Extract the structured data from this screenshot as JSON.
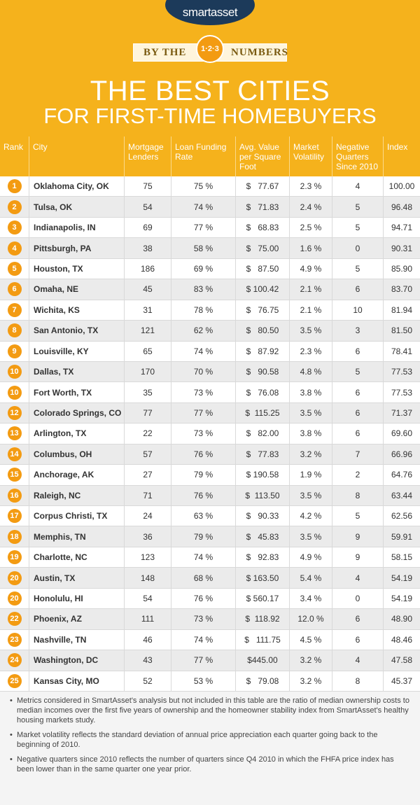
{
  "header": {
    "logo": "smartasset",
    "ribbon": [
      "BY THE",
      "1·2·3",
      "NUMBERS"
    ],
    "title": "THE BEST CITIES",
    "subtitle": "FOR FIRST-TIME HOMEBUYERS"
  },
  "table": {
    "header": [
      "Rank",
      "City",
      "Mortgage Lenders",
      "Loan Funding Rate",
      "Avg. Value per Square Foot",
      "Market Volatility",
      "Negative Quarters Since 2010",
      "Index"
    ],
    "rows": [
      [
        "1",
        "Oklahoma City, OK",
        "75",
        "75 %",
        "$   77.67",
        "2.3 %",
        "4",
        "100.00"
      ],
      [
        "2",
        "Tulsa, OK",
        "54",
        "74 %",
        "$   71.83",
        "2.4 %",
        "5",
        "96.48"
      ],
      [
        "3",
        "Indianapolis, IN",
        "69",
        "77 %",
        "$   68.83",
        "2.5 %",
        "5",
        "94.71"
      ],
      [
        "4",
        "Pittsburgh, PA",
        "38",
        "58 %",
        "$   75.00",
        "1.6 %",
        "0",
        "90.31"
      ],
      [
        "5",
        "Houston, TX",
        "186",
        "69 %",
        "$   87.50",
        "4.9 %",
        "5",
        "85.90"
      ],
      [
        "6",
        "Omaha, NE",
        "45",
        "83 %",
        "$ 100.42",
        "2.1 %",
        "6",
        "83.70"
      ],
      [
        "7",
        "Wichita, KS",
        "31",
        "78 %",
        "$   76.75",
        "2.1 %",
        "10",
        "81.94"
      ],
      [
        "8",
        "San Antonio, TX",
        "121",
        "62 %",
        "$   80.50",
        "3.5 %",
        "3",
        "81.50"
      ],
      [
        "9",
        "Louisville, KY",
        "65",
        "74 %",
        "$   87.92",
        "2.3 %",
        "6",
        "78.41"
      ],
      [
        "10",
        "Dallas, TX",
        "170",
        "70 %",
        "$   90.58",
        "4.8 %",
        "5",
        "77.53"
      ],
      [
        "10",
        "Fort Worth, TX",
        "35",
        "73 %",
        "$   76.08",
        "3.8 %",
        "6",
        "77.53"
      ],
      [
        "12",
        "Colorado Springs, CO",
        "77",
        "77 %",
        "$  115.25",
        "3.5 %",
        "6",
        "71.37"
      ],
      [
        "13",
        "Arlington, TX",
        "22",
        "73 %",
        "$   82.00",
        "3.8 %",
        "6",
        "69.60"
      ],
      [
        "14",
        "Columbus, OH",
        "57",
        "76 %",
        "$   77.83",
        "3.2 %",
        "7",
        "66.96"
      ],
      [
        "15",
        "Anchorage, AK",
        "27",
        "79 %",
        "$ 190.58",
        "1.9 %",
        "2",
        "64.76"
      ],
      [
        "16",
        "Raleigh, NC",
        "71",
        "76 %",
        "$  113.50",
        "3.5 %",
        "8",
        "63.44"
      ],
      [
        "17",
        "Corpus Christi, TX",
        "24",
        "63 %",
        "$   90.33",
        "4.2 %",
        "5",
        "62.56"
      ],
      [
        "18",
        "Memphis, TN",
        "36",
        "79 %",
        "$   45.83",
        "3.5 %",
        "9",
        "59.91"
      ],
      [
        "19",
        "Charlotte, NC",
        "123",
        "74 %",
        "$   92.83",
        "4.9 %",
        "9",
        "58.15"
      ],
      [
        "20",
        "Austin, TX",
        "148",
        "68 %",
        "$ 163.50",
        "5.4 %",
        "4",
        "54.19"
      ],
      [
        "20",
        "Honolulu, HI",
        "54",
        "76 %",
        "$ 560.17",
        "3.4 %",
        "0",
        "54.19"
      ],
      [
        "22",
        "Phoenix, AZ",
        "111",
        "73 %",
        "$  118.92",
        "12.0 %",
        "6",
        "48.90"
      ],
      [
        "23",
        "Nashville, TN",
        "46",
        "74 %",
        "$   111.75",
        "4.5 %",
        "6",
        "48.46"
      ],
      [
        "24",
        "Washington, DC",
        "43",
        "77 %",
        "$445.00",
        "3.2 %",
        "4",
        "47.58"
      ],
      [
        "25",
        "Kansas City, MO",
        "52",
        "53 %",
        "$   79.08",
        "3.2 %",
        "8",
        "45.37"
      ]
    ]
  },
  "notes": [
    "Metrics considered in SmartAsset's analysis but not included in this table are the ratio of median ownership costs to median incomes over the first five years of ownership and the homeowner stability index from SmartAsset's healthy housing markets study.",
    "Market volatility reflects the standard deviation of annual price appreciation each quarter going back to the beginning of 2010.",
    "Negative quarters since 2010 reflects the number of quarters since Q4 2010 in which the FHFA price index has been lower than in the same quarter one year prior."
  ]
}
